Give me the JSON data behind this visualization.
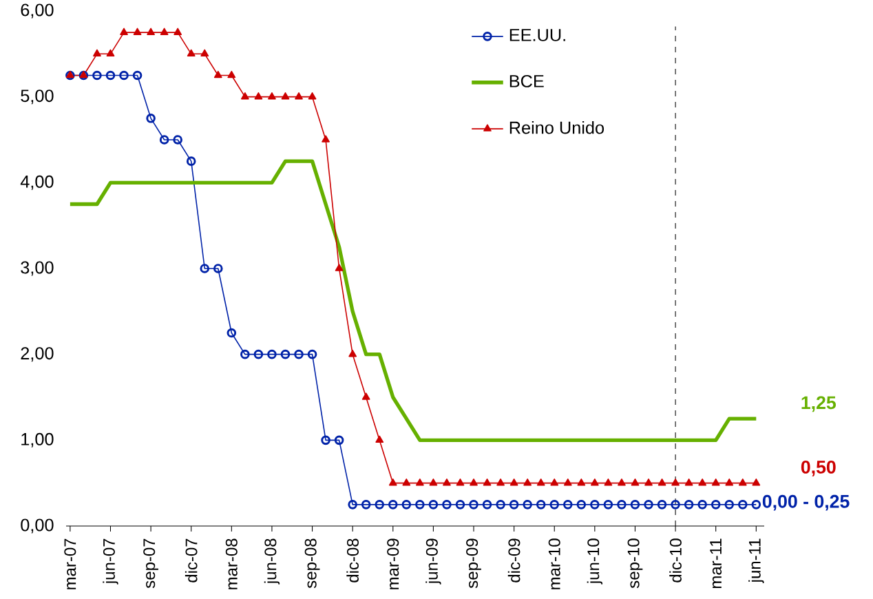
{
  "chart_data": {
    "type": "line",
    "categories": [
      "mar-07",
      null,
      null,
      "jun-07",
      null,
      null,
      "sep-07",
      null,
      null,
      "dic-07",
      null,
      null,
      "mar-08",
      null,
      null,
      "jun-08",
      null,
      null,
      "sep-08",
      null,
      null,
      "dic-08",
      null,
      null,
      "mar-09",
      null,
      null,
      "jun-09",
      null,
      null,
      "sep-09",
      null,
      null,
      "dic-09",
      null,
      null,
      "mar-10",
      null,
      null,
      "jun-10",
      null,
      null,
      "sep-10",
      null,
      null,
      "dic-10",
      null,
      null,
      "mar-11",
      null,
      null,
      "jun-11"
    ],
    "series": [
      {
        "name": "EE.UU.",
        "color": "#0022a8",
        "marker": "circle",
        "values": [
          5.25,
          5.25,
          5.25,
          5.25,
          5.25,
          5.25,
          4.75,
          4.5,
          4.5,
          4.25,
          3.0,
          3.0,
          2.25,
          2.0,
          2.0,
          2.0,
          2.0,
          2.0,
          2.0,
          1.0,
          1.0,
          0.25,
          0.25,
          0.25,
          0.25,
          0.25,
          0.25,
          0.25,
          0.25,
          0.25,
          0.25,
          0.25,
          0.25,
          0.25,
          0.25,
          0.25,
          0.25,
          0.25,
          0.25,
          0.25,
          0.25,
          0.25,
          0.25,
          0.25,
          0.25,
          0.25,
          0.25,
          0.25,
          0.25,
          0.25,
          0.25,
          0.25
        ]
      },
      {
        "name": "BCE",
        "color": "#66b000",
        "marker": "none",
        "values": [
          3.75,
          3.75,
          3.75,
          4.0,
          4.0,
          4.0,
          4.0,
          4.0,
          4.0,
          4.0,
          4.0,
          4.0,
          4.0,
          4.0,
          4.0,
          4.0,
          4.25,
          4.25,
          4.25,
          3.75,
          3.25,
          2.5,
          2.0,
          2.0,
          1.5,
          1.25,
          1.0,
          1.0,
          1.0,
          1.0,
          1.0,
          1.0,
          1.0,
          1.0,
          1.0,
          1.0,
          1.0,
          1.0,
          1.0,
          1.0,
          1.0,
          1.0,
          1.0,
          1.0,
          1.0,
          1.0,
          1.0,
          1.0,
          1.0,
          1.25,
          1.25,
          1.25
        ]
      },
      {
        "name": "Reino Unido",
        "color": "#cc0000",
        "marker": "triangle",
        "values": [
          5.25,
          5.25,
          5.5,
          5.5,
          5.75,
          5.75,
          5.75,
          5.75,
          5.75,
          5.5,
          5.5,
          5.25,
          5.25,
          5.0,
          5.0,
          5.0,
          5.0,
          5.0,
          5.0,
          4.5,
          3.0,
          2.0,
          1.5,
          1.0,
          0.5,
          0.5,
          0.5,
          0.5,
          0.5,
          0.5,
          0.5,
          0.5,
          0.5,
          0.5,
          0.5,
          0.5,
          0.5,
          0.5,
          0.5,
          0.5,
          0.5,
          0.5,
          0.5,
          0.5,
          0.5,
          0.5,
          0.5,
          0.5,
          0.5,
          0.5,
          0.5,
          0.5
        ]
      }
    ],
    "ylim": [
      0,
      6
    ],
    "yticks": [
      {
        "value": 0,
        "label": "0,00"
      },
      {
        "value": 1,
        "label": "1,00"
      },
      {
        "value": 2,
        "label": "2,00"
      },
      {
        "value": 3,
        "label": "3,00"
      },
      {
        "value": 4,
        "label": "4,00"
      },
      {
        "value": 5,
        "label": "5,00"
      },
      {
        "value": 6,
        "label": "6,00"
      }
    ],
    "annotations": [
      "0,00 - 0,25",
      "1,25",
      "0,50"
    ],
    "ref_lines": [
      {
        "axis": "x",
        "value": "dic-10",
        "color": "#000000",
        "line_style": "dashed"
      }
    ],
    "grid": false,
    "legend": "top"
  }
}
